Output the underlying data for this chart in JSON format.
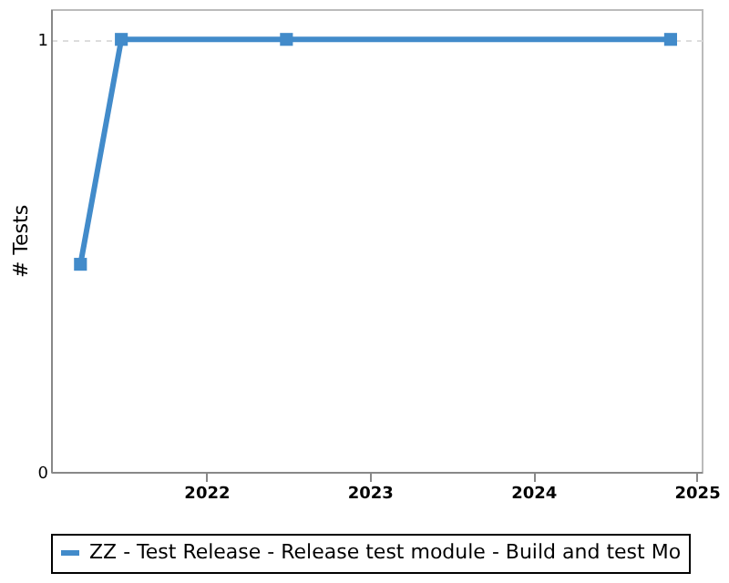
{
  "chart_data": {
    "type": "line",
    "ylabel": "# Tests",
    "x": [
      2021.23,
      2021.48,
      2022.49,
      2024.84
    ],
    "series": [
      {
        "name": "ZZ - Test Release - Release test module - Build and test Mo",
        "color": "#428bca",
        "values": [
          0.48,
          1,
          1,
          1
        ]
      }
    ],
    "xlim": [
      2021.05,
      2025.03
    ],
    "xticks": [
      2022,
      2023,
      2024,
      2025
    ],
    "ylim": [
      0,
      1.07
    ],
    "yticks": [
      0,
      1
    ],
    "grid": "y",
    "legend": "bottom",
    "marker": "square",
    "line_style": "solid"
  }
}
